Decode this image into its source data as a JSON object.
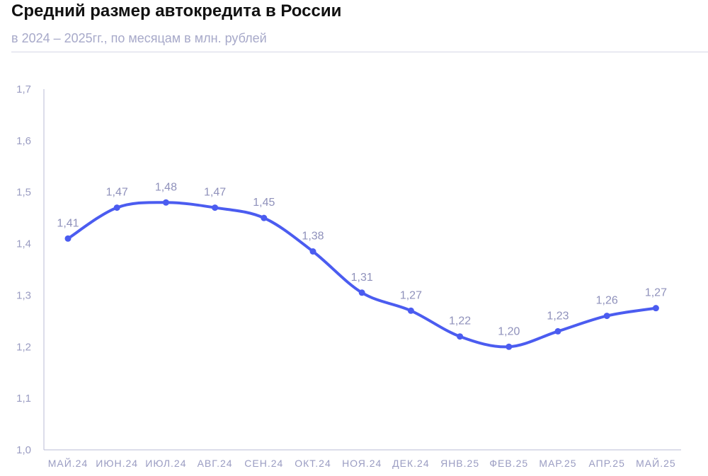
{
  "title": "Средний размер автокредита в России",
  "subtitle": "в 2024 – 2025гг., по месяцам в млн. рублей",
  "colors": {
    "line": "#4b5cf0",
    "axis": "#b9bbd6",
    "tick_text": "#9a9cc2",
    "label_text": "#8f91bb"
  },
  "chart_data": {
    "type": "line",
    "title": "Средний размер автокредита в России",
    "subtitle": "в 2024 – 2025гг., по месяцам в млн. рублей",
    "xlabel": "",
    "ylabel": "",
    "ylim": [
      1.0,
      1.7
    ],
    "yticks": [
      1.0,
      1.1,
      1.2,
      1.3,
      1.4,
      1.5,
      1.6,
      1.7
    ],
    "ytick_labels": [
      "1,0",
      "1,1",
      "1,2",
      "1,3",
      "1,4",
      "1,5",
      "1,6",
      "1,7"
    ],
    "grid": false,
    "legend": "none",
    "categories": [
      "МАЙ.24",
      "ИЮН.24",
      "ИЮЛ.24",
      "АВГ.24",
      "СЕН.24",
      "ОКТ.24",
      "НОЯ.24",
      "ДЕК.24",
      "ЯНВ.25",
      "ФЕВ.25",
      "МАР.25",
      "АПР.25",
      "МАЙ.25"
    ],
    "series": [
      {
        "values": [
          1.41,
          1.47,
          1.48,
          1.47,
          1.45,
          1.385,
          1.305,
          1.27,
          1.22,
          1.2,
          1.23,
          1.26,
          1.275
        ],
        "labels": [
          "1,41",
          "1,47",
          "1,48",
          "1,47",
          "1,45",
          "1,38",
          "1,31",
          "1,27",
          "1,22",
          "1,20",
          "1,23",
          "1,26",
          "1,27"
        ]
      }
    ]
  }
}
